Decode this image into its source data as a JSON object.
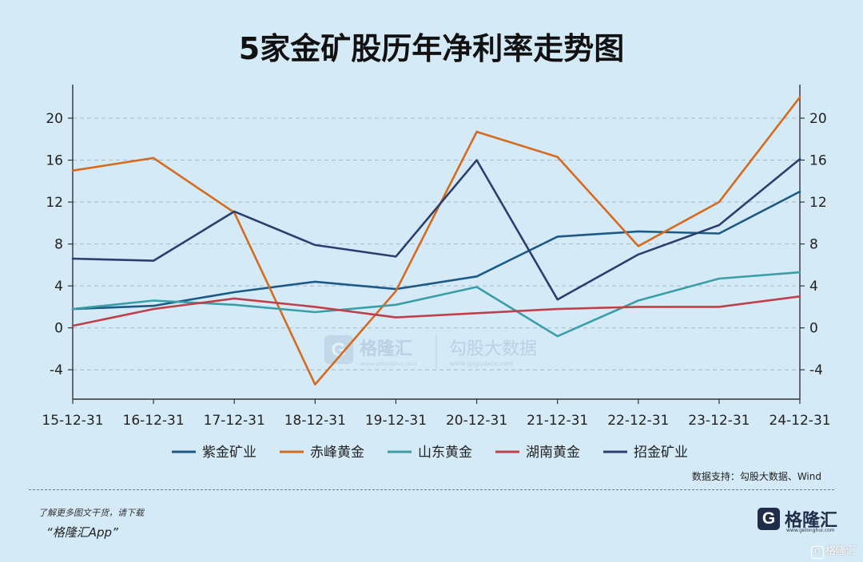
{
  "title": "5家金矿股历年净利率走势图",
  "source": "数据支持：勾股大数据、Wind",
  "promo_line1": "了解更多图文干货，请下载",
  "promo_line2": "“格隆汇App”",
  "brand": {
    "name": "格隆汇",
    "url": "www.gelonghui.com"
  },
  "watermark": {
    "left_name": "格隆汇",
    "left_url": "www.gelonghui.com",
    "right_name": "勾股大数据",
    "right_url": "www.gogudata.com"
  },
  "corner_mark": "格隆汇",
  "colors": {
    "background": "#d5eaf7",
    "grid": "#a8b8c6",
    "axis": "#333333"
  },
  "chart_data": {
    "type": "line",
    "title": "5家金矿股历年净利率走势图",
    "categories": [
      "15-12-31",
      "16-12-31",
      "17-12-31",
      "18-12-31",
      "19-12-31",
      "20-12-31",
      "21-12-31",
      "22-12-31",
      "23-12-31",
      "24-12-31"
    ],
    "ylim": [
      -6.8,
      23.2
    ],
    "yticks": [
      -4,
      0,
      4,
      8,
      12,
      16,
      20
    ],
    "grid": true,
    "legend_position": "bottom",
    "dual_axis_same_scale": true,
    "series": [
      {
        "name": "紫金矿业",
        "color": "#1c5a85",
        "values": [
          1.8,
          2.1,
          3.4,
          4.4,
          3.7,
          4.9,
          8.7,
          9.2,
          9.0,
          13.0
        ]
      },
      {
        "name": "赤峰黄金",
        "color": "#d46b1f",
        "values": [
          15.0,
          16.2,
          11.0,
          -5.4,
          3.5,
          18.7,
          16.3,
          7.8,
          12.0,
          22.0
        ]
      },
      {
        "name": "山东黄金",
        "color": "#3a9ea6",
        "values": [
          1.8,
          2.6,
          2.2,
          1.5,
          2.2,
          3.9,
          -0.8,
          2.6,
          4.7,
          5.3
        ]
      },
      {
        "name": "湖南黄金",
        "color": "#c0404a",
        "values": [
          0.2,
          1.8,
          2.8,
          2.0,
          1.0,
          1.4,
          1.8,
          2.0,
          2.0,
          3.0
        ]
      },
      {
        "name": "招金矿业",
        "color": "#2d3e6e",
        "values": [
          6.6,
          6.4,
          11.1,
          7.9,
          6.8,
          16.0,
          2.7,
          7.0,
          9.8,
          16.1
        ]
      }
    ]
  }
}
